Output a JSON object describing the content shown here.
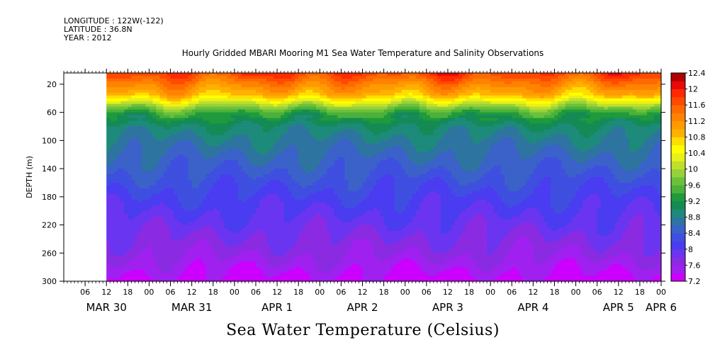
{
  "meta": {
    "longitude": "LONGITUDE : 122W(-122)",
    "latitude": "LATITUDE : 36.8N",
    "year": "YEAR : 2012"
  },
  "chart_data": {
    "type": "heatmap",
    "title": "Hourly Gridded MBARI Mooring M1 Sea Water Temperature and Salinity Observations",
    "xlabel": "Sea Water Temperature (Celsius)",
    "ylabel": "DEPTH (m)",
    "x_start_hour": 0,
    "x_end_hour": 168,
    "data_start_hour": 12,
    "ylim": [
      300,
      4
    ],
    "y_ticks": [
      20,
      60,
      100,
      140,
      180,
      220,
      260,
      300
    ],
    "x_hour_ticks": [
      "06",
      "12",
      "18",
      "00",
      "06",
      "12",
      "18",
      "00",
      "06",
      "12",
      "18",
      "00",
      "06",
      "12",
      "18",
      "00",
      "06",
      "12",
      "18",
      "00",
      "06",
      "12",
      "18",
      "00",
      "06",
      "12",
      "18",
      "00"
    ],
    "x_day_labels": [
      {
        "label": "MAR 30",
        "hour": 12
      },
      {
        "label": "MAR 31",
        "hour": 36
      },
      {
        "label": "APR  1",
        "hour": 60
      },
      {
        "label": "APR  2",
        "hour": 84
      },
      {
        "label": "APR  3",
        "hour": 108
      },
      {
        "label": "APR  4",
        "hour": 132
      },
      {
        "label": "APR  5",
        "hour": 156
      },
      {
        "label": "APR  6",
        "hour": 168
      }
    ],
    "colorbar": {
      "levels": [
        7.2,
        7.4,
        7.6,
        7.8,
        8.0,
        8.2,
        8.4,
        8.6,
        8.8,
        9.0,
        9.2,
        9.4,
        9.6,
        9.8,
        10.0,
        10.2,
        10.4,
        10.6,
        10.8,
        11.0,
        11.2,
        11.4,
        11.6,
        11.8,
        12.0,
        12.2,
        12.4
      ],
      "labels": [
        "12.4",
        "12",
        "11.6",
        "11.2",
        "10.8",
        "10.4",
        "10",
        "9.6",
        "9.2",
        "8.8",
        "8.4",
        "8",
        "7.6",
        "7.2"
      ],
      "colors": [
        "#cc00ff",
        "#a020f0",
        "#8a2be2",
        "#6a35f0",
        "#4a3cf0",
        "#3f4fe0",
        "#3a62c8",
        "#2e74a0",
        "#1d8a7a",
        "#148a55",
        "#1f9a3c",
        "#4cb13a",
        "#6ac13a",
        "#96d13a",
        "#c0df2a",
        "#e8f018",
        "#ffff00",
        "#ffdd00",
        "#ffb000",
        "#ff9a00",
        "#ff8200",
        "#ff6a00",
        "#ff4a00",
        "#ff2a00",
        "#e80a0a",
        "#b00000"
      ]
    },
    "profile": [
      {
        "depth": 4,
        "temp": 11.8
      },
      {
        "depth": 20,
        "temp": 11.3
      },
      {
        "depth": 35,
        "temp": 10.9
      },
      {
        "depth": 45,
        "temp": 10.3
      },
      {
        "depth": 60,
        "temp": 9.4
      },
      {
        "depth": 80,
        "temp": 8.95
      },
      {
        "depth": 100,
        "temp": 8.75
      },
      {
        "depth": 140,
        "temp": 8.45
      },
      {
        "depth": 180,
        "temp": 8.15
      },
      {
        "depth": 220,
        "temp": 7.9
      },
      {
        "depth": 260,
        "temp": 7.65
      },
      {
        "depth": 300,
        "temp": 7.3
      }
    ]
  }
}
